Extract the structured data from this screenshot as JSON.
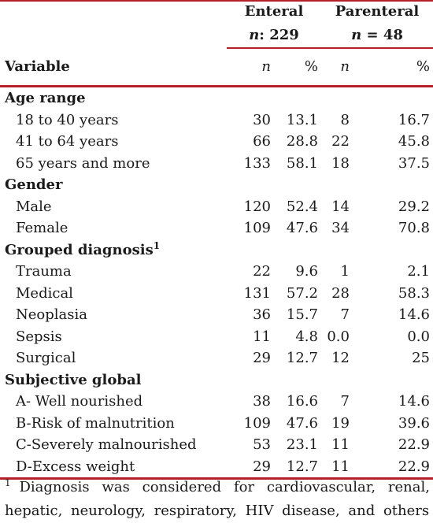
{
  "header": {
    "group1": "Enteral",
    "group1_n_label": "n",
    "group1_n_value": ": 229",
    "group2": "Parenteral",
    "group2_n_label": "n",
    "group2_n_value": " = 48",
    "variable": "Variable",
    "col_n": "n",
    "col_pct": "%"
  },
  "sections": [
    {
      "title": "Age range",
      "rows": [
        {
          "label": "18 to 40 years",
          "en": "30",
          "ep": "13.1",
          "pn": "8",
          "pp": "16.7"
        },
        {
          "label": "41 to 64  years",
          "en": "66",
          "ep": "28.8",
          "pn": "22",
          "pp": "45.8"
        },
        {
          "label": "65 years and more",
          "en": "133",
          "ep": "58.1",
          "pn": "18",
          "pp": "37.5"
        }
      ]
    },
    {
      "title": "Gender",
      "rows": [
        {
          "label": "Male",
          "en": "120",
          "ep": "52.4",
          "pn": "14",
          "pp": "29.2"
        },
        {
          "label": "Female",
          "en": "109",
          "ep": "47.6",
          "pn": "34",
          "pp": "70.8"
        }
      ]
    },
    {
      "title": "Grouped diagnosis",
      "sup": "1",
      "rows": [
        {
          "label": "Trauma",
          "en": "22",
          "ep": "9.6",
          "pn": "1",
          "pp": "2.1"
        },
        {
          "label": "Medical",
          "en": "131",
          "ep": "57.2",
          "pn": "28",
          "pp": "58.3"
        },
        {
          "label": "Neoplasia",
          "en": "36",
          "ep": "15.7",
          "pn": "7",
          "pp": "14.6"
        },
        {
          "label": "Sepsis",
          "en": "11",
          "ep": "4.8",
          "pn": "0.0",
          "pp": "0.0"
        },
        {
          "label": "Surgical",
          "en": "29",
          "ep": "12.7",
          "pn": "12",
          "pp": "25"
        }
      ]
    },
    {
      "title": "Subjective global",
      "rows": [
        {
          "label": "A- Well nourished",
          "en": "38",
          "ep": "16.6",
          "pn": "7",
          "pp": "14.6"
        },
        {
          "label": "B-Risk of malnutrition",
          "en": "109",
          "ep": "47.6",
          "pn": "19",
          "pp": "39.6"
        },
        {
          "label": "C-Severely malnourished",
          "en": "53",
          "ep": "23.1",
          "pn": "11",
          "pp": "22.9"
        },
        {
          "label": "D-Excess weight",
          "en": "29",
          "ep": "12.7",
          "pn": "11",
          "pp": "22.9"
        }
      ]
    }
  ],
  "footnote": {
    "marker": "1",
    "text": "Diagnosis was considered for cardiovascular, renal, hepatic, neurology, respiratory, HIV disease, and others"
  },
  "colors": {
    "rule": "#b5202a",
    "text": "#1a1a1a"
  }
}
